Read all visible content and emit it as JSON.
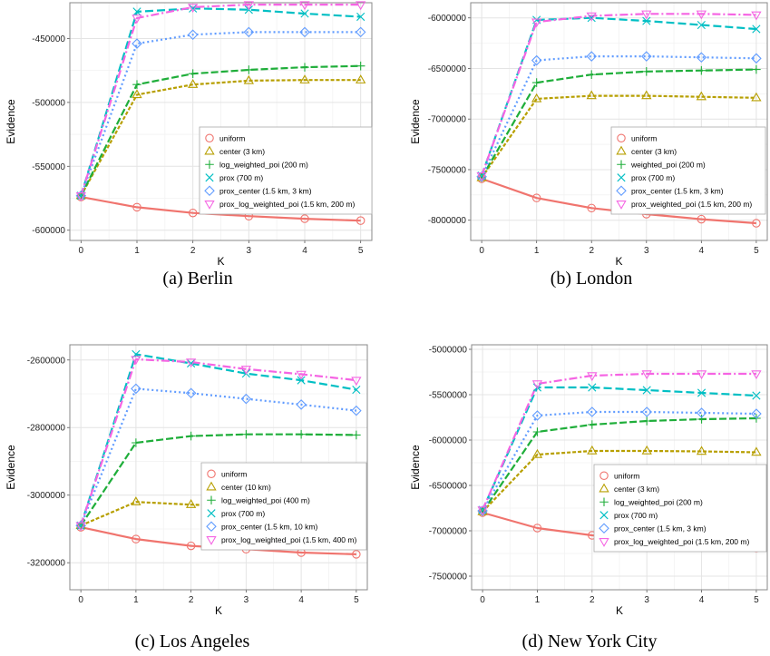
{
  "colors": {
    "uniform": "#F0746E",
    "center": "#B79F00",
    "log_weighted": "#1FAE3A",
    "prox": "#00BFC4",
    "prox_center": "#619CFF",
    "prox_log": "#F564E3",
    "grid_major": "#e4e4e4",
    "grid_minor": "#f2f2f2",
    "panel_border": "#888888"
  },
  "chart_data": [
    {
      "type": "line",
      "caption": "(a)  Berlin",
      "xlabel": "K",
      "ylabel": "Evidence",
      "x": [
        0,
        1,
        2,
        3,
        4,
        5
      ],
      "xlim": [
        -0.2,
        5.2
      ],
      "ylim": [
        -608000,
        -422000
      ],
      "yticks": [
        -600000,
        -550000,
        -500000,
        -450000
      ],
      "ytick_labels": [
        "-600000",
        "-550000",
        "-500000",
        "-450000"
      ],
      "legend_position": "bottom-right",
      "series": [
        {
          "name": "uniform",
          "key": "uniform",
          "marker": "circle",
          "dash": "",
          "values": [
            -574000,
            -582000,
            -586500,
            -589000,
            -591000,
            -592500
          ]
        },
        {
          "name": "center (3 km)",
          "key": "center",
          "marker": "triangle-up",
          "dash": "4,2",
          "values": [
            -573000,
            -494000,
            -486000,
            -483000,
            -482500,
            -482500
          ]
        },
        {
          "name": "log_weighted_poi (200 m)",
          "key": "log_weighted",
          "marker": "plus",
          "dash": "8,3",
          "values": [
            -573000,
            -486000,
            -477500,
            -474500,
            -472500,
            -471500
          ]
        },
        {
          "name": "prox (700 m)",
          "key": "prox",
          "marker": "cross",
          "dash": "9,4",
          "values": [
            -573000,
            -429000,
            -426500,
            -427500,
            -430500,
            -433000
          ]
        },
        {
          "name": "prox_center (1.5 km, 3 km)",
          "key": "prox_center",
          "marker": "diamond",
          "dash": "2,3",
          "values": [
            -573000,
            -454000,
            -447000,
            -445000,
            -445000,
            -445000
          ]
        },
        {
          "name": "prox_log_weighted_poi (1.5 km, 200 m)",
          "key": "prox_log",
          "marker": "triangle-down",
          "dash": "9,3,2,3",
          "values": [
            -573000,
            -434000,
            -425500,
            -423500,
            -423500,
            -423500
          ]
        }
      ]
    },
    {
      "type": "line",
      "caption": "(b)  London",
      "xlabel": "K",
      "ylabel": "Evidence",
      "x": [
        0,
        1,
        2,
        3,
        4,
        5
      ],
      "xlim": [
        -0.2,
        5.2
      ],
      "ylim": [
        -8200000,
        -5850000
      ],
      "yticks": [
        -8000000,
        -7500000,
        -7000000,
        -6500000,
        -6000000
      ],
      "ytick_labels": [
        "-8000000",
        "-7500000",
        "-7000000",
        "-6500000",
        "-6000000"
      ],
      "legend_position": "bottom-right",
      "series": [
        {
          "name": "uniform",
          "key": "uniform",
          "marker": "circle",
          "dash": "",
          "values": [
            -7590000,
            -7780000,
            -7880000,
            -7940000,
            -7990000,
            -8030000
          ]
        },
        {
          "name": "center (3 km)",
          "key": "center",
          "marker": "triangle-up",
          "dash": "4,2",
          "values": [
            -7580000,
            -6800000,
            -6770000,
            -6770000,
            -6780000,
            -6790000
          ]
        },
        {
          "name": "weighted_poi (200 m)",
          "key": "log_weighted",
          "marker": "plus",
          "dash": "8,3",
          "values": [
            -7580000,
            -6640000,
            -6560000,
            -6530000,
            -6520000,
            -6510000
          ]
        },
        {
          "name": "prox (700 m)",
          "key": "prox",
          "marker": "cross",
          "dash": "9,4",
          "values": [
            -7560000,
            -6020000,
            -6000000,
            -6030000,
            -6070000,
            -6110000
          ]
        },
        {
          "name": "prox_center (1.5 km, 3 km)",
          "key": "prox_center",
          "marker": "diamond",
          "dash": "2,3",
          "values": [
            -7570000,
            -6420000,
            -6380000,
            -6380000,
            -6390000,
            -6400000
          ]
        },
        {
          "name": "prox_weighted_poi (1.5 km, 200 m)",
          "key": "prox_log",
          "marker": "triangle-down",
          "dash": "9,3,2,3",
          "values": [
            -7560000,
            -6040000,
            -5980000,
            -5960000,
            -5960000,
            -5970000
          ]
        }
      ]
    },
    {
      "type": "line",
      "caption": "(c)  Los Angeles",
      "xlabel": "K",
      "ylabel": "Evidence",
      "x": [
        0,
        1,
        2,
        3,
        4,
        5
      ],
      "xlim": [
        -0.2,
        5.2
      ],
      "ylim": [
        -3280000,
        -2555000
      ],
      "yticks": [
        -3200000,
        -3000000,
        -2800000,
        -2600000
      ],
      "ytick_labels": [
        "-3200000",
        "-3000000",
        "-2800000",
        "-2600000"
      ],
      "legend_position": "bottom-right",
      "series": [
        {
          "name": "uniform",
          "key": "uniform",
          "marker": "circle",
          "dash": "",
          "values": [
            -3095000,
            -3130000,
            -3150000,
            -3160000,
            -3170000,
            -3175000
          ]
        },
        {
          "name": "center (10 km)",
          "key": "center",
          "marker": "triangle-up",
          "dash": "4,2",
          "values": [
            -3090000,
            -3020000,
            -3028000,
            -3033000,
            -3040000,
            -3050000
          ]
        },
        {
          "name": "log_weighted_poi (400 m)",
          "key": "log_weighted",
          "marker": "plus",
          "dash": "8,3",
          "values": [
            -3090000,
            -2845000,
            -2825000,
            -2820000,
            -2820000,
            -2822000
          ]
        },
        {
          "name": "prox (700 m)",
          "key": "prox",
          "marker": "cross",
          "dash": "9,4",
          "values": [
            -3090000,
            -2583000,
            -2610000,
            -2640000,
            -2660000,
            -2688000
          ]
        },
        {
          "name": "prox_center (1.5 km, 10 km)",
          "key": "prox_center",
          "marker": "diamond",
          "dash": "2,3",
          "values": [
            -3090000,
            -2685000,
            -2698000,
            -2715000,
            -2732000,
            -2750000
          ]
        },
        {
          "name": "prox_log_weighted_poi (1.5 km, 400 m)",
          "key": "prox_log",
          "marker": "triangle-down",
          "dash": "9,3,2,3",
          "values": [
            -3090000,
            -2598000,
            -2606000,
            -2627000,
            -2642000,
            -2660000
          ]
        }
      ]
    },
    {
      "type": "line",
      "caption": "(d)  New York City",
      "xlabel": "K",
      "ylabel": "Evidence",
      "x": [
        0,
        1,
        2,
        3,
        4,
        5
      ],
      "xlim": [
        -0.2,
        5.2
      ],
      "ylim": [
        -7650000,
        -4950000
      ],
      "yticks": [
        -7500000,
        -7000000,
        -6500000,
        -6000000,
        -5500000,
        -5000000
      ],
      "ytick_labels": [
        "-7500000",
        "-7000000",
        "-6500000",
        "-6000000",
        "-5500000",
        "-5000000"
      ],
      "legend_position": "bottom-right",
      "series": [
        {
          "name": "uniform",
          "key": "uniform",
          "marker": "circle",
          "dash": "",
          "values": [
            -6800000,
            -6970000,
            -7050000,
            -7100000,
            -7150000,
            -7190000
          ]
        },
        {
          "name": "center (3 km)",
          "key": "center",
          "marker": "triangle-up",
          "dash": "4,2",
          "values": [
            -6790000,
            -6160000,
            -6120000,
            -6120000,
            -6125000,
            -6135000
          ]
        },
        {
          "name": "log_weighted_poi (200 m)",
          "key": "log_weighted",
          "marker": "plus",
          "dash": "8,3",
          "values": [
            -6790000,
            -5910000,
            -5830000,
            -5790000,
            -5770000,
            -5760000
          ]
        },
        {
          "name": "prox (700 m)",
          "key": "prox",
          "marker": "cross",
          "dash": "9,4",
          "values": [
            -6770000,
            -5420000,
            -5420000,
            -5450000,
            -5480000,
            -5510000
          ]
        },
        {
          "name": "prox_center (1.5 km, 3 km)",
          "key": "prox_center",
          "marker": "diamond",
          "dash": "2,3",
          "values": [
            -6780000,
            -5730000,
            -5690000,
            -5690000,
            -5700000,
            -5710000
          ]
        },
        {
          "name": "prox_log_weighted_poi (1.5 km, 200 m)",
          "key": "prox_log",
          "marker": "triangle-down",
          "dash": "9,3,2,3",
          "values": [
            -6770000,
            -5380000,
            -5290000,
            -5270000,
            -5270000,
            -5270000
          ]
        }
      ]
    }
  ]
}
